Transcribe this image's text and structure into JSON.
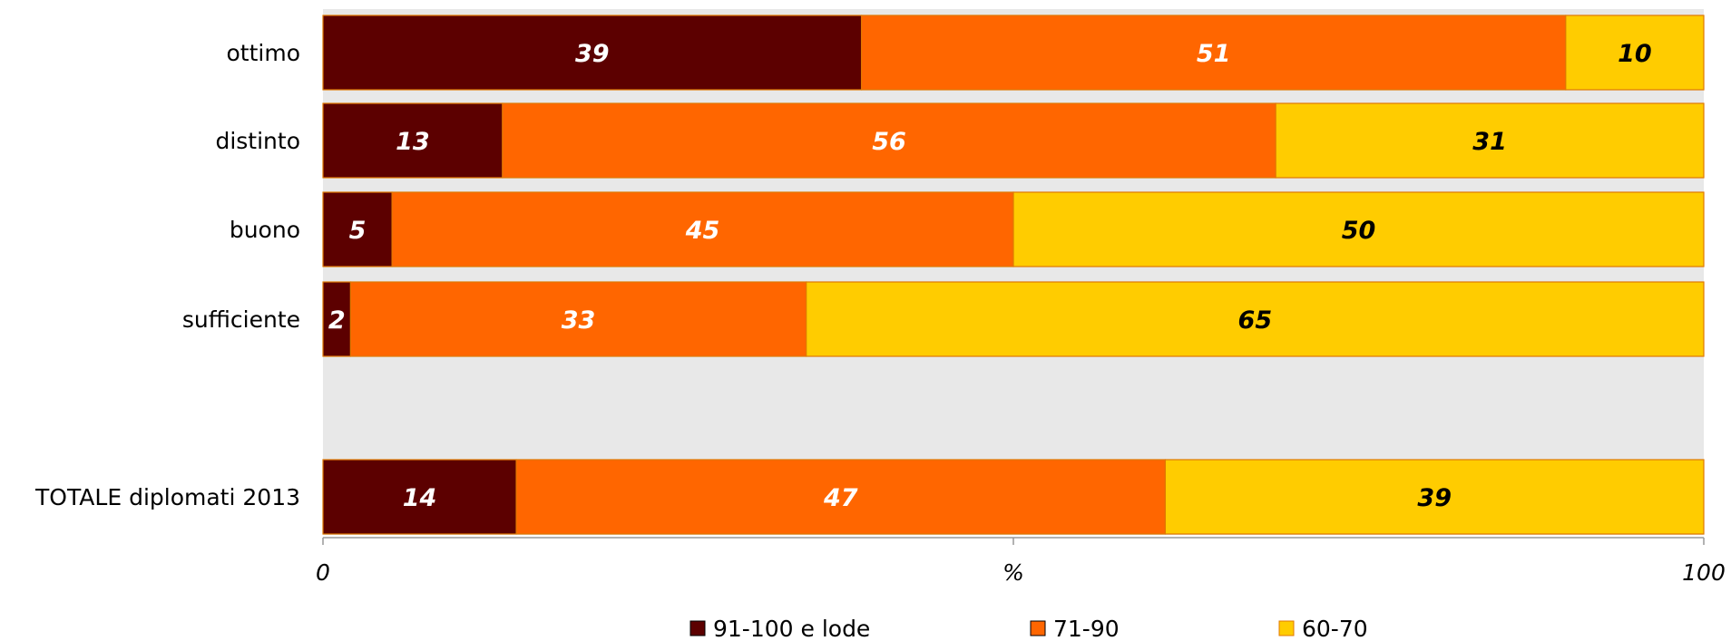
{
  "chart_data": {
    "type": "bar",
    "orientation": "horizontal",
    "stacked": true,
    "categories": [
      "ottimo",
      "distinto",
      "buono",
      "sufficiente",
      "",
      "TOTALE diplomati 2013"
    ],
    "series": [
      {
        "name": "91-100 e lode",
        "color": "#5c0000",
        "label_color": "#ffffff",
        "values": [
          39,
          13,
          5,
          2,
          null,
          14
        ]
      },
      {
        "name": "71-90",
        "color": "#ff6600",
        "label_color": "#ffffff",
        "values": [
          51,
          56,
          45,
          33,
          null,
          47
        ]
      },
      {
        "name": "60-70",
        "color": "#ffcc00",
        "label_color": "#000000",
        "values": [
          10,
          31,
          50,
          65,
          null,
          39
        ]
      }
    ],
    "x_ticks": [
      "0",
      "%",
      "100"
    ],
    "xlim": [
      0,
      100
    ],
    "legend_position": "bottom",
    "plot_background": "#e8e8e8",
    "bar_border_color": "#e07800"
  }
}
